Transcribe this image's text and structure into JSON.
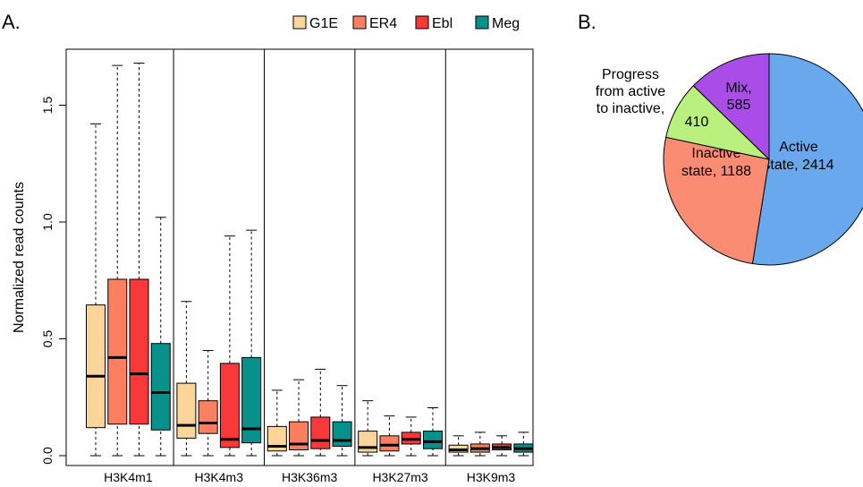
{
  "panel_a_letter": "A.",
  "panel_b_letter": "B.",
  "chart_data": [
    {
      "type": "boxplot",
      "ylabel": "Normalized read counts",
      "ylim": [
        0,
        1.7
      ],
      "yticks": [
        {
          "value": 0.0,
          "label": "0.0"
        },
        {
          "value": 0.5,
          "label": "0.5"
        },
        {
          "value": 1.0,
          "label": "1.0"
        },
        {
          "value": 1.5,
          "label": "1.5"
        }
      ],
      "legend": {
        "placement": "top-center"
      },
      "categories": [
        "H3K4m1",
        "H3K4m3",
        "H3K36m3",
        "H3K27m3",
        "H3K9m3"
      ],
      "series": [
        {
          "name": "G1E",
          "color": "#FDD59B",
          "boxes": [
            {
              "whisker_low": 0.0,
              "q1": 0.12,
              "median": 0.34,
              "q3": 0.645,
              "whisker_high": 1.42
            },
            {
              "whisker_low": 0.0,
              "q1": 0.075,
              "median": 0.13,
              "q3": 0.31,
              "whisker_high": 0.66
            },
            {
              "whisker_low": 0.0,
              "q1": 0.02,
              "median": 0.04,
              "q3": 0.125,
              "whisker_high": 0.28
            },
            {
              "whisker_low": 0.0,
              "q1": 0.015,
              "median": 0.035,
              "q3": 0.105,
              "whisker_high": 0.235
            },
            {
              "whisker_low": 0.0,
              "q1": 0.015,
              "median": 0.025,
              "q3": 0.045,
              "whisker_high": 0.085
            }
          ]
        },
        {
          "name": "ER4",
          "color": "#FC7F5F",
          "boxes": [
            {
              "whisker_low": 0.0,
              "q1": 0.135,
              "median": 0.42,
              "q3": 0.755,
              "whisker_high": 1.67
            },
            {
              "whisker_low": 0.0,
              "q1": 0.095,
              "median": 0.14,
              "q3": 0.235,
              "whisker_high": 0.45
            },
            {
              "whisker_low": 0.0,
              "q1": 0.025,
              "median": 0.05,
              "q3": 0.145,
              "whisker_high": 0.325
            },
            {
              "whisker_low": 0.0,
              "q1": 0.02,
              "median": 0.045,
              "q3": 0.085,
              "whisker_high": 0.17
            },
            {
              "whisker_low": 0.0,
              "q1": 0.015,
              "median": 0.03,
              "q3": 0.05,
              "whisker_high": 0.1
            }
          ]
        },
        {
          "name": "Ebl",
          "color": "#F9383A",
          "boxes": [
            {
              "whisker_low": 0.0,
              "q1": 0.135,
              "median": 0.35,
              "q3": 0.755,
              "whisker_high": 1.68
            },
            {
              "whisker_low": 0.0,
              "q1": 0.035,
              "median": 0.07,
              "q3": 0.395,
              "whisker_high": 0.94
            },
            {
              "whisker_low": 0.0,
              "q1": 0.03,
              "median": 0.065,
              "q3": 0.165,
              "whisker_high": 0.37
            },
            {
              "whisker_low": 0.0,
              "q1": 0.05,
              "median": 0.07,
              "q3": 0.1,
              "whisker_high": 0.165
            },
            {
              "whisker_low": 0.0,
              "q1": 0.025,
              "median": 0.035,
              "q3": 0.05,
              "whisker_high": 0.085
            }
          ]
        },
        {
          "name": "Meg",
          "color": "#08918A",
          "boxes": [
            {
              "whisker_low": 0.0,
              "q1": 0.11,
              "median": 0.27,
              "q3": 0.48,
              "whisker_high": 1.02
            },
            {
              "whisker_low": 0.0,
              "q1": 0.055,
              "median": 0.115,
              "q3": 0.42,
              "whisker_high": 0.965
            },
            {
              "whisker_low": 0.0,
              "q1": 0.04,
              "median": 0.065,
              "q3": 0.145,
              "whisker_high": 0.3
            },
            {
              "whisker_low": 0.0,
              "q1": 0.03,
              "median": 0.06,
              "q3": 0.105,
              "whisker_high": 0.205
            },
            {
              "whisker_low": 0.0,
              "q1": 0.015,
              "median": 0.03,
              "q3": 0.05,
              "whisker_high": 0.1
            }
          ]
        }
      ]
    },
    {
      "type": "pie",
      "slices": [
        {
          "lines": [
            "Active",
            "state, 2414"
          ],
          "value": 2414,
          "color": "#6AA8EE"
        },
        {
          "lines": [
            "Inactive",
            "state, 1188"
          ],
          "value": 1188,
          "color": "#FA8C74"
        },
        {
          "lines": [
            "410"
          ],
          "value": 410,
          "color": "#B9F07E"
        },
        {
          "lines": [
            "Mix,",
            "585"
          ],
          "value": 585,
          "color": "#A94CE8"
        }
      ],
      "outside_label": [
        "Progress",
        "from active",
        "to inactive,"
      ]
    }
  ]
}
